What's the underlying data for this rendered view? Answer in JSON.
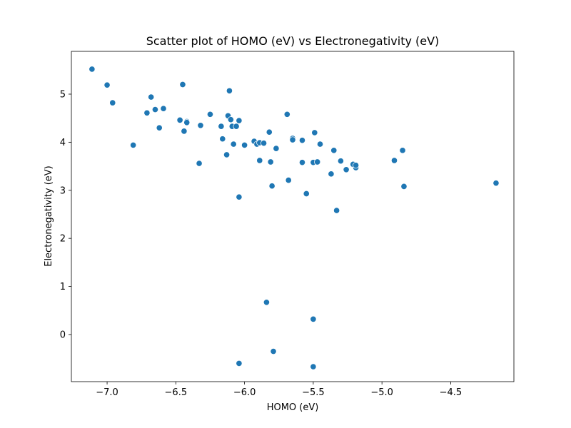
{
  "chart_data": {
    "type": "scatter",
    "title": "Scatter plot of HOMO (eV) vs Electronegativity (eV)",
    "xlabel": "HOMO (eV)",
    "ylabel": "Electronegativity (eV)",
    "xlim": [
      -7.26,
      -4.04
    ],
    "ylim": [
      -0.98,
      5.89
    ],
    "xticks": [
      -7.0,
      -6.5,
      -6.0,
      -5.5,
      -5.0,
      -4.5
    ],
    "xtick_labels": [
      "−7.0",
      "−6.5",
      "−6.0",
      "−5.5",
      "−5.0",
      "−4.5"
    ],
    "yticks": [
      0,
      1,
      2,
      3,
      4,
      5
    ],
    "ytick_labels": [
      "0",
      "1",
      "2",
      "3",
      "4",
      "5"
    ],
    "grid": false,
    "color": "#1f77b4",
    "points": [
      {
        "x": -7.11,
        "y": 5.52
      },
      {
        "x": -7.0,
        "y": 5.19
      },
      {
        "x": -6.96,
        "y": 4.82
      },
      {
        "x": -6.81,
        "y": 3.94
      },
      {
        "x": -6.71,
        "y": 4.61
      },
      {
        "x": -6.68,
        "y": 4.94
      },
      {
        "x": -6.65,
        "y": 4.68
      },
      {
        "x": -6.62,
        "y": 4.3
      },
      {
        "x": -6.59,
        "y": 4.7
      },
      {
        "x": -6.47,
        "y": 4.46
      },
      {
        "x": -6.45,
        "y": 5.2
      },
      {
        "x": -6.44,
        "y": 4.23
      },
      {
        "x": -6.42,
        "y": 4.43
      },
      {
        "x": -6.42,
        "y": 4.41
      },
      {
        "x": -6.33,
        "y": 3.56
      },
      {
        "x": -6.32,
        "y": 4.35
      },
      {
        "x": -6.25,
        "y": 4.58
      },
      {
        "x": -6.17,
        "y": 4.33
      },
      {
        "x": -6.16,
        "y": 4.07
      },
      {
        "x": -6.13,
        "y": 3.74
      },
      {
        "x": -6.12,
        "y": 4.55
      },
      {
        "x": -6.11,
        "y": 5.07
      },
      {
        "x": -6.1,
        "y": 4.47
      },
      {
        "x": -6.09,
        "y": 4.33
      },
      {
        "x": -6.08,
        "y": 3.96
      },
      {
        "x": -6.06,
        "y": 4.33
      },
      {
        "x": -6.04,
        "y": 4.45
      },
      {
        "x": -6.04,
        "y": 2.86
      },
      {
        "x": -6.04,
        "y": -0.6
      },
      {
        "x": -6.0,
        "y": 3.94
      },
      {
        "x": -5.93,
        "y": 4.02
      },
      {
        "x": -5.91,
        "y": 3.96
      },
      {
        "x": -5.89,
        "y": 3.99
      },
      {
        "x": -5.89,
        "y": 3.62
      },
      {
        "x": -5.86,
        "y": 3.98
      },
      {
        "x": -5.84,
        "y": 0.67
      },
      {
        "x": -5.82,
        "y": 4.21
      },
      {
        "x": -5.81,
        "y": 3.59
      },
      {
        "x": -5.8,
        "y": 3.09
      },
      {
        "x": -5.79,
        "y": -0.35
      },
      {
        "x": -5.77,
        "y": 3.87
      },
      {
        "x": -5.69,
        "y": 4.58
      },
      {
        "x": -5.68,
        "y": 3.21
      },
      {
        "x": -5.65,
        "y": 4.08
      },
      {
        "x": -5.65,
        "y": 4.05
      },
      {
        "x": -5.58,
        "y": 4.04
      },
      {
        "x": -5.58,
        "y": 3.58
      },
      {
        "x": -5.55,
        "y": 2.93
      },
      {
        "x": -5.5,
        "y": 3.58
      },
      {
        "x": -5.5,
        "y": 0.32
      },
      {
        "x": -5.5,
        "y": -0.67
      },
      {
        "x": -5.49,
        "y": 4.2
      },
      {
        "x": -5.47,
        "y": 3.59
      },
      {
        "x": -5.45,
        "y": 3.96
      },
      {
        "x": -5.37,
        "y": 3.34
      },
      {
        "x": -5.35,
        "y": 3.83
      },
      {
        "x": -5.33,
        "y": 2.58
      },
      {
        "x": -5.3,
        "y": 3.61
      },
      {
        "x": -5.26,
        "y": 3.43
      },
      {
        "x": -5.21,
        "y": 3.54
      },
      {
        "x": -5.19,
        "y": 3.47
      },
      {
        "x": -5.19,
        "y": 3.52
      },
      {
        "x": -4.91,
        "y": 3.62
      },
      {
        "x": -4.85,
        "y": 3.83
      },
      {
        "x": -4.84,
        "y": 3.08
      },
      {
        "x": -4.17,
        "y": 3.15
      }
    ]
  }
}
